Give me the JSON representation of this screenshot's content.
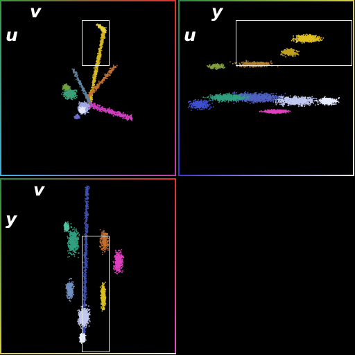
{
  "panels": {
    "uv": {
      "vertical_axis": "v",
      "horizontal_axis": "u"
    },
    "yu": {
      "vertical_axis": "y",
      "horizontal_axis": "u"
    },
    "yv": {
      "vertical_axis": "v",
      "horizontal_axis": "y"
    }
  },
  "colors": {
    "background": "#000000",
    "selection_box": "#e6e6e6",
    "border_red": "#e53030",
    "border_green": "#2aa84a",
    "border_blue": "#3a4ad0",
    "border_cyan": "#40b0e0",
    "border_yellow": "#e8d040",
    "border_magenta": "#e050c8"
  }
}
